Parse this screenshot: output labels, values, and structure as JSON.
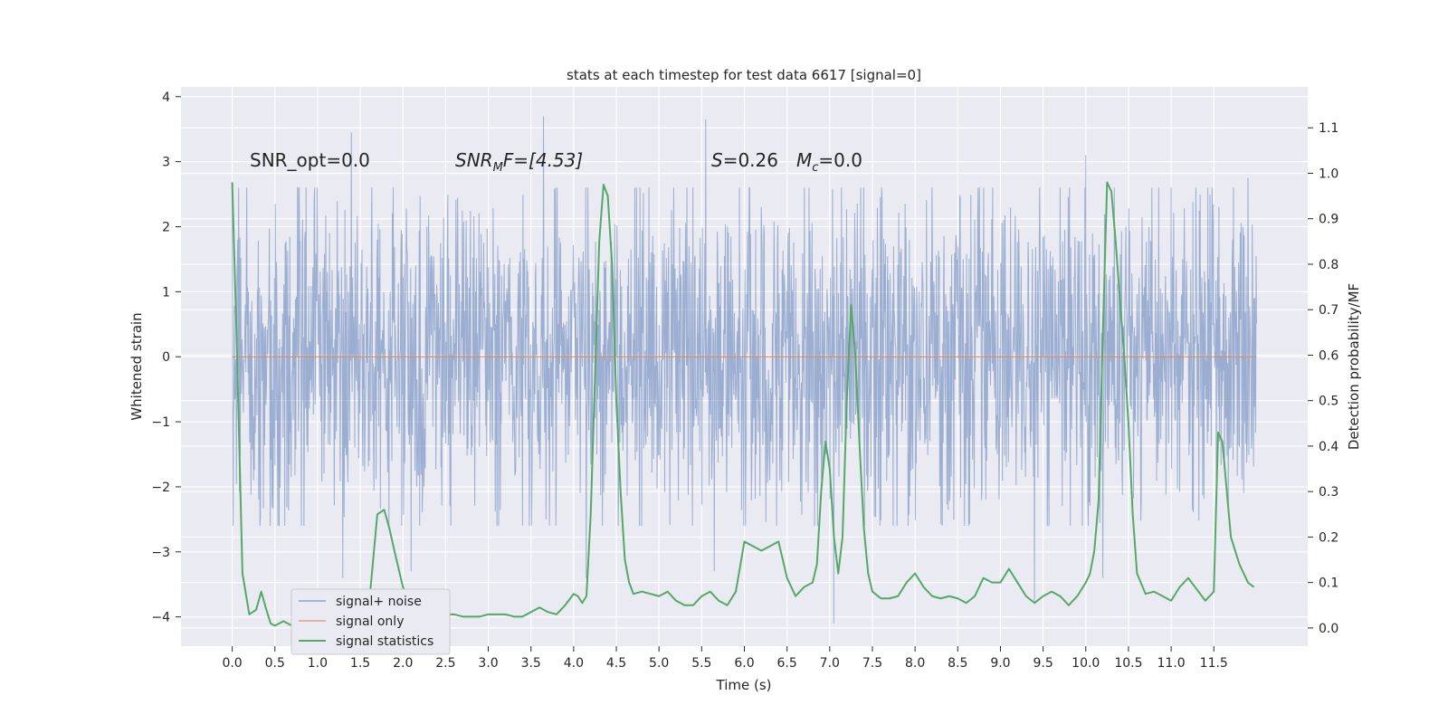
{
  "chart_data": {
    "type": "line",
    "title": "stats at each timestep for test data 6617 [signal=0]",
    "xlabel": "Time (s)",
    "ylabel": "Whitened strain",
    "y2label": "Detection probability/MF",
    "xlim": [
      -0.6,
      12.6
    ],
    "ylim": [
      -4.45,
      4.15
    ],
    "y2lim": [
      -0.04,
      1.19
    ],
    "xticks": [
      "0.0",
      "0.5",
      "1.0",
      "1.5",
      "2.0",
      "2.5",
      "3.0",
      "3.5",
      "4.0",
      "4.5",
      "5.0",
      "5.5",
      "6.0",
      "6.5",
      "7.0",
      "7.5",
      "8.0",
      "8.5",
      "9.0",
      "9.5",
      "10.0",
      "10.5",
      "11.0",
      "11.5"
    ],
    "yticks": [
      "4",
      "3",
      "2",
      "1",
      "0",
      "−1",
      "−2",
      "−3",
      "−4"
    ],
    "y2ticks": [
      "1.1",
      "1.0",
      "0.9",
      "0.8",
      "0.7",
      "0.6",
      "0.5",
      "0.4",
      "0.3",
      "0.2",
      "0.1",
      "0.0"
    ],
    "grid": true,
    "legend_position": "lower-left",
    "annotations": {
      "snr_opt": "SNR_opt=0.0",
      "snr_mf_sym": "SNR",
      "snr_mf_sub": "M",
      "snr_mf_tail": "F=[4.53]",
      "s_sym": "S",
      "s_val": "=0.26",
      "mc_sym": "M",
      "mc_sub": "c",
      "mc_val": "=0.0"
    },
    "series": [
      {
        "name": "signal+ noise",
        "color": "#4c72b0",
        "axis": "left",
        "note_type": "noise",
        "x_range": [
          0.0,
          12.0
        ],
        "typical_envelope": [
          -1.6,
          1.6
        ],
        "peaks": [
          {
            "x": 0.0,
            "y": 2.6
          },
          {
            "x": 0.0,
            "y": -1.9
          },
          {
            "x": 1.4,
            "y": 3.45
          },
          {
            "x": 1.3,
            "y": -3.4
          },
          {
            "x": 2.1,
            "y": -3.3
          },
          {
            "x": 3.65,
            "y": 3.7
          },
          {
            "x": 4.15,
            "y": -3.4
          },
          {
            "x": 5.55,
            "y": 3.65
          },
          {
            "x": 5.65,
            "y": -3.3
          },
          {
            "x": 7.05,
            "y": -4.1
          },
          {
            "x": 9.4,
            "y": -3.8
          },
          {
            "x": 10.0,
            "y": 3.1
          },
          {
            "x": 10.2,
            "y": -3.4
          },
          {
            "x": 11.9,
            "y": 2.75
          }
        ]
      },
      {
        "name": "signal only",
        "color": "#dd8452",
        "axis": "left",
        "x": [
          0.0,
          12.0
        ],
        "y": [
          0.0,
          0.0
        ]
      },
      {
        "name": "signal statistics",
        "color": "#55a868",
        "axis": "right",
        "x": [
          0.0,
          0.05,
          0.12,
          0.2,
          0.28,
          0.34,
          0.4,
          0.45,
          0.5,
          0.6,
          0.7,
          0.8,
          0.9,
          1.0,
          1.1,
          1.2,
          1.3,
          1.4,
          1.5,
          1.6,
          1.7,
          1.78,
          1.84,
          1.9,
          1.95,
          2.0,
          2.1,
          2.2,
          2.3,
          2.4,
          2.5,
          2.6,
          2.7,
          2.8,
          2.9,
          3.0,
          3.1,
          3.2,
          3.3,
          3.4,
          3.5,
          3.6,
          3.7,
          3.8,
          3.9,
          4.0,
          4.05,
          4.1,
          4.15,
          4.2,
          4.25,
          4.3,
          4.35,
          4.4,
          4.45,
          4.5,
          4.55,
          4.6,
          4.65,
          4.7,
          4.8,
          4.9,
          5.0,
          5.1,
          5.2,
          5.3,
          5.4,
          5.5,
          5.6,
          5.7,
          5.8,
          5.9,
          6.0,
          6.1,
          6.2,
          6.3,
          6.4,
          6.5,
          6.6,
          6.7,
          6.8,
          6.85,
          6.9,
          6.95,
          7.0,
          7.05,
          7.1,
          7.15,
          7.2,
          7.25,
          7.3,
          7.35,
          7.4,
          7.45,
          7.5,
          7.6,
          7.7,
          7.8,
          7.9,
          8.0,
          8.1,
          8.2,
          8.3,
          8.4,
          8.5,
          8.6,
          8.7,
          8.8,
          8.9,
          9.0,
          9.1,
          9.2,
          9.3,
          9.4,
          9.5,
          9.6,
          9.7,
          9.8,
          9.9,
          10.0,
          10.05,
          10.1,
          10.15,
          10.2,
          10.25,
          10.3,
          10.35,
          10.4,
          10.45,
          10.5,
          10.55,
          10.6,
          10.7,
          10.8,
          10.9,
          11.0,
          11.1,
          11.2,
          11.3,
          11.4,
          11.5,
          11.55,
          11.6,
          11.7,
          11.8,
          11.9,
          11.97
        ],
        "y": [
          0.98,
          0.65,
          0.12,
          0.03,
          0.04,
          0.08,
          0.04,
          0.01,
          0.005,
          0.015,
          0.005,
          0.01,
          0.015,
          0.01,
          0.01,
          0.01,
          0.02,
          0.015,
          0.02,
          0.045,
          0.25,
          0.26,
          0.22,
          0.17,
          0.13,
          0.09,
          0.045,
          0.03,
          0.03,
          0.035,
          0.03,
          0.03,
          0.025,
          0.025,
          0.025,
          0.03,
          0.03,
          0.03,
          0.025,
          0.025,
          0.035,
          0.045,
          0.035,
          0.03,
          0.05,
          0.075,
          0.07,
          0.055,
          0.07,
          0.25,
          0.55,
          0.85,
          0.975,
          0.95,
          0.8,
          0.5,
          0.3,
          0.15,
          0.1,
          0.075,
          0.08,
          0.075,
          0.07,
          0.08,
          0.06,
          0.05,
          0.05,
          0.07,
          0.08,
          0.06,
          0.05,
          0.08,
          0.19,
          0.18,
          0.17,
          0.18,
          0.19,
          0.11,
          0.07,
          0.09,
          0.1,
          0.14,
          0.3,
          0.41,
          0.35,
          0.2,
          0.12,
          0.2,
          0.5,
          0.71,
          0.6,
          0.4,
          0.22,
          0.12,
          0.08,
          0.065,
          0.065,
          0.07,
          0.1,
          0.12,
          0.09,
          0.07,
          0.065,
          0.07,
          0.065,
          0.055,
          0.07,
          0.11,
          0.1,
          0.1,
          0.13,
          0.1,
          0.07,
          0.055,
          0.07,
          0.08,
          0.07,
          0.05,
          0.07,
          0.1,
          0.12,
          0.17,
          0.28,
          0.65,
          0.98,
          0.96,
          0.85,
          0.72,
          0.6,
          0.45,
          0.25,
          0.12,
          0.075,
          0.08,
          0.07,
          0.06,
          0.09,
          0.11,
          0.085,
          0.06,
          0.08,
          0.43,
          0.41,
          0.2,
          0.14,
          0.1,
          0.09
        ]
      }
    ]
  }
}
